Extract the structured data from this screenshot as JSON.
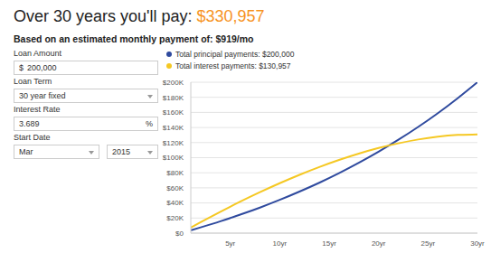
{
  "header": {
    "title": "Over 30 years you'll pay: ",
    "total": "$330,957",
    "subtitle": "Based on an estimated monthly payment of: $919/mo"
  },
  "form": [
    {
      "label": "Loan Amount",
      "prefix": "$",
      "value": "200,000"
    },
    {
      "label": "Loan Term",
      "select": "30 year fixed"
    },
    {
      "label": "Interest Rate",
      "value": "3.689",
      "suffix": "%"
    },
    {
      "label": "Start Date",
      "selects": [
        "Mar",
        "2015"
      ]
    }
  ],
  "chart_data": {
    "type": "line",
    "legend": "top",
    "grid": true,
    "x": [
      1,
      2,
      4,
      6,
      8,
      10,
      12,
      14,
      16,
      18,
      20,
      22,
      24,
      26,
      28,
      30
    ],
    "xlim": [
      1,
      30
    ],
    "xticks": [
      {
        "value": 5,
        "label": "5yr"
      },
      {
        "value": 10,
        "label": "10yr"
      },
      {
        "value": 15,
        "label": "15yr"
      },
      {
        "value": 20,
        "label": "20yr"
      },
      {
        "value": 25,
        "label": "25yr"
      },
      {
        "value": 30,
        "label": "30yr"
      }
    ],
    "ylim": [
      0,
      200000
    ],
    "yticks": [
      {
        "value": 0,
        "label": "$0"
      },
      {
        "value": 20000,
        "label": "$20K"
      },
      {
        "value": 40000,
        "label": "$40K"
      },
      {
        "value": 60000,
        "label": "$60K"
      },
      {
        "value": 80000,
        "label": "$80K"
      },
      {
        "value": 100000,
        "label": "$100K"
      },
      {
        "value": 120000,
        "label": "$120K"
      },
      {
        "value": 140000,
        "label": "$140K"
      },
      {
        "value": 160000,
        "label": "$160K"
      },
      {
        "value": 180000,
        "label": "$180K"
      },
      {
        "value": 200000,
        "label": "$200K"
      }
    ],
    "series": [
      {
        "name": "Total principal payments: $200,000",
        "color": "#2f4a9e",
        "values": [
          3700,
          7600,
          15700,
          24500,
          33900,
          44100,
          55100,
          66800,
          79500,
          93200,
          107900,
          123700,
          140700,
          159000,
          178800,
          200000
        ]
      },
      {
        "name": "Total interest payments: $130,957",
        "color": "#f5c823",
        "values": [
          7300,
          14500,
          28400,
          41700,
          54300,
          66200,
          77300,
          87600,
          97000,
          105400,
          112800,
          119000,
          124100,
          127800,
          130100,
          130957
        ]
      }
    ]
  }
}
